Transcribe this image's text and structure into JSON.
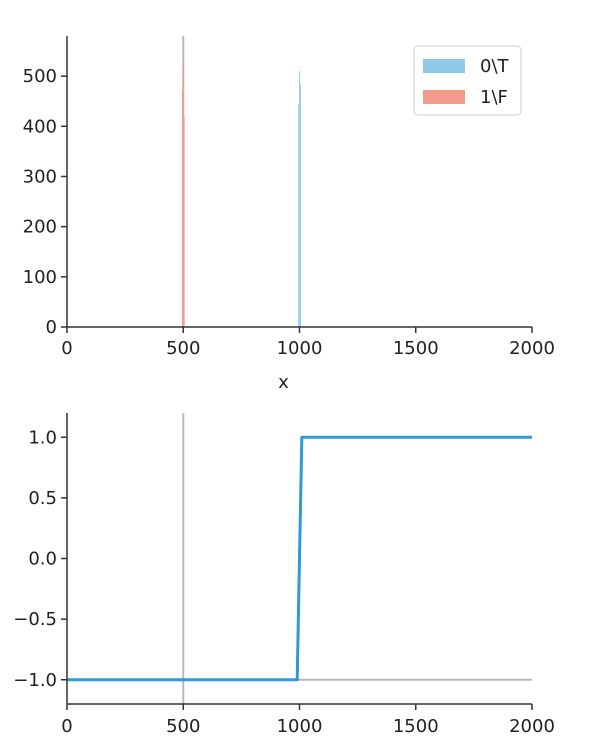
{
  "chart_data": [
    {
      "type": "histogram",
      "title": "",
      "xlabel": "x",
      "ylabel": "",
      "xlim": [
        0,
        2000
      ],
      "ylim": [
        0,
        580
      ],
      "xticks": [
        "0",
        "500",
        "1000",
        "1500",
        "2000"
      ],
      "yticks": [
        "0",
        "100",
        "200",
        "300",
        "400",
        "500"
      ],
      "xtick_values": [
        0,
        500,
        1000,
        1500,
        2000
      ],
      "ytick_values": [
        0,
        100,
        200,
        300,
        400,
        500
      ],
      "vline_x": 500,
      "legend": {
        "placement": "top-right"
      },
      "series": [
        {
          "name": "0\\T",
          "color": "#8ecbea",
          "bars": [
            {
              "x0": 994,
              "x1": 998,
              "y": 445
            },
            {
              "x0": 998,
              "x1": 1002,
              "y": 510
            },
            {
              "x0": 1002,
              "x1": 1006,
              "y": 485
            }
          ]
        },
        {
          "name": "1\\F",
          "color": "#f59b8c",
          "bars": [
            {
              "x0": 494,
              "x1": 498,
              "y": 470
            },
            {
              "x0": 498,
              "x1": 502,
              "y": 528
            },
            {
              "x0": 502,
              "x1": 506,
              "y": 420
            }
          ]
        }
      ]
    },
    {
      "type": "line",
      "title": "",
      "xlabel": "",
      "ylabel": "",
      "xlim": [
        0,
        2000
      ],
      "ylim": [
        -1.2,
        1.2
      ],
      "xticks": [
        "0",
        "500",
        "1000",
        "1500",
        "2000"
      ],
      "yticks": [
        "−1.0",
        "−0.5",
        "0.0",
        "0.5",
        "1.0"
      ],
      "xtick_values": [
        0,
        500,
        1000,
        1500,
        2000
      ],
      "ytick_values": [
        -1.0,
        -0.5,
        0.0,
        0.5,
        1.0
      ],
      "vline_x": 500,
      "hline_y": -1.0,
      "series": [
        {
          "name": "",
          "color": "#2e9ad6",
          "x": [
            0,
            990,
            1010,
            2000
          ],
          "y": [
            -1.0,
            -1.0,
            1.0,
            1.0
          ]
        }
      ]
    }
  ]
}
